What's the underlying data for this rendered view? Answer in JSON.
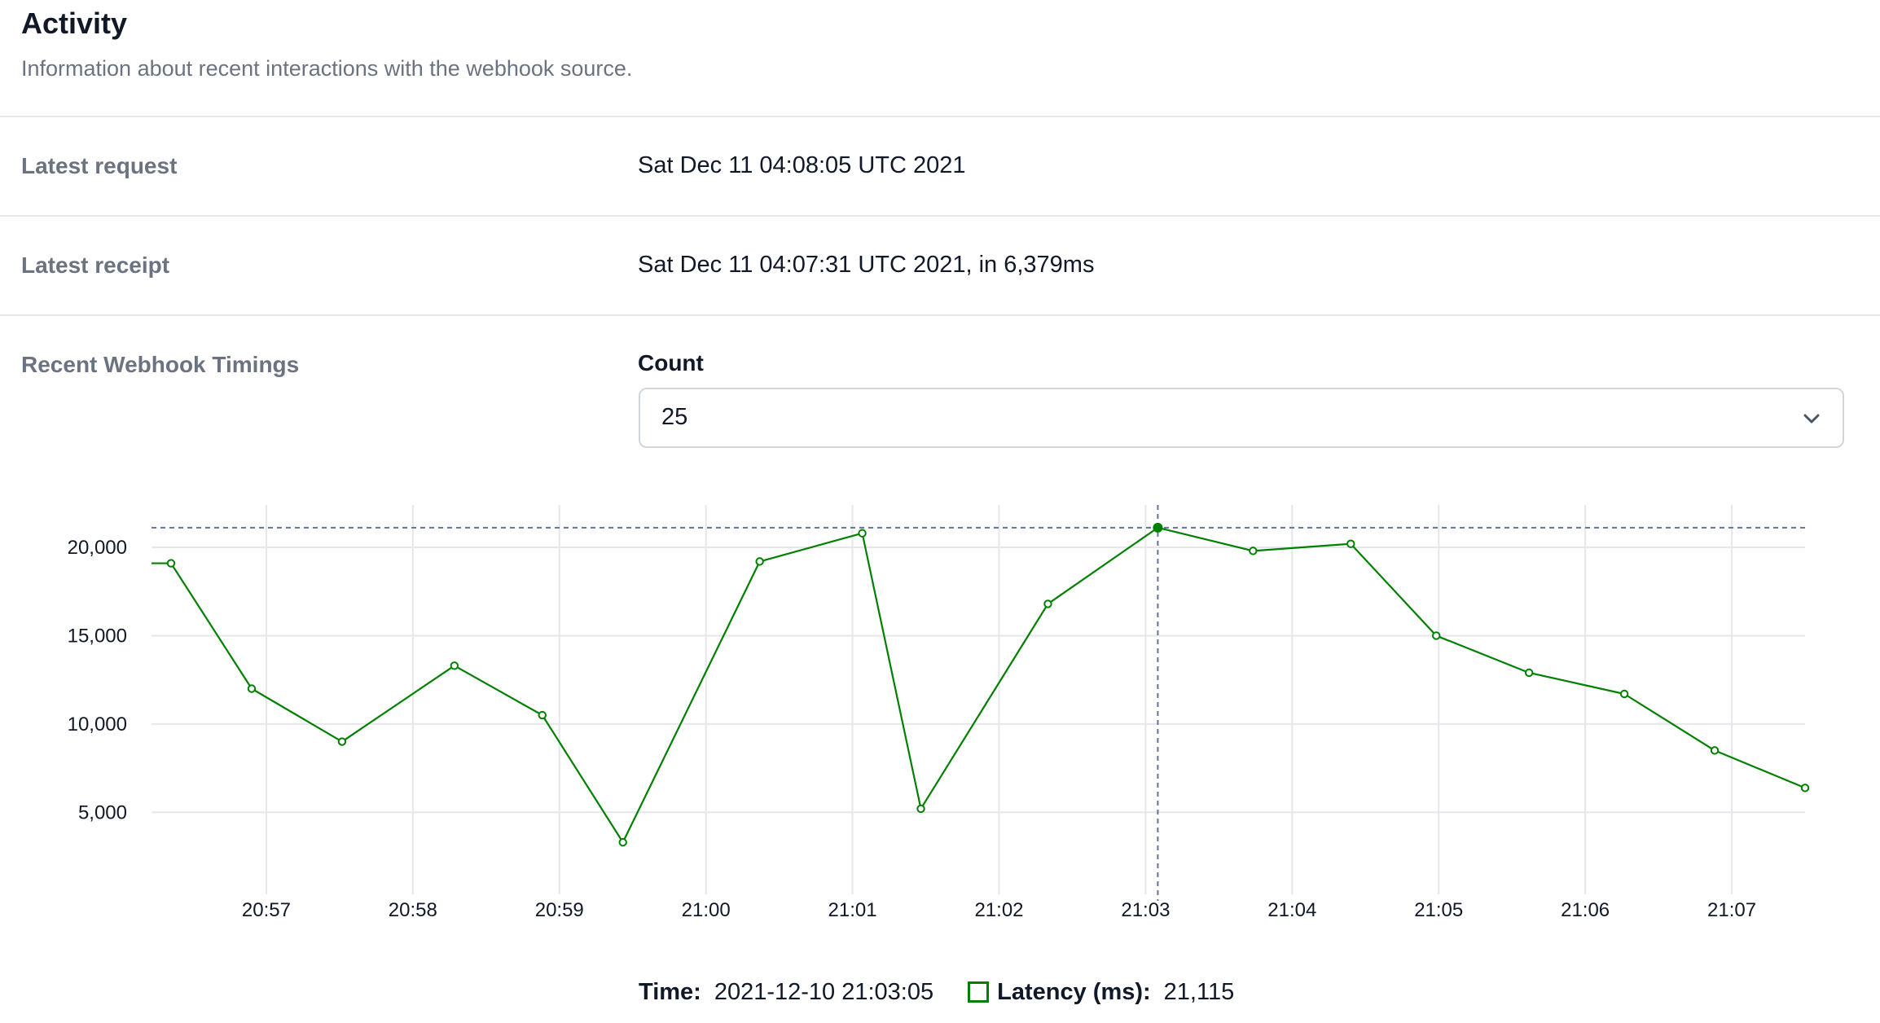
{
  "header": {
    "title": "Activity",
    "subtitle": "Information about recent interactions with the webhook source."
  },
  "rows": {
    "latest_request": {
      "label": "Latest request",
      "value": "Sat Dec 11 04:08:05 UTC 2021"
    },
    "latest_receipt": {
      "label": "Latest receipt",
      "value": "Sat Dec 11 04:07:31 UTC 2021, in 6,379ms"
    },
    "timings": {
      "label": "Recent Webhook Timings"
    }
  },
  "count": {
    "label": "Count",
    "selected": "25",
    "icon": "chevron-down-icon"
  },
  "tooltip": {
    "time_label": "Time:",
    "time_value": "2021-12-10 21:03:05",
    "latency_label": "Latency (ms):",
    "latency_value": "21,115"
  },
  "colors": {
    "series": "#008000",
    "grid": "#e5e7eb",
    "crosshair": "#64748b"
  },
  "chart_data": {
    "type": "line",
    "xlabel": "",
    "ylabel": "",
    "x_ticks": [
      "20:57",
      "20:58",
      "20:59",
      "21:00",
      "21:01",
      "21:02",
      "21:03",
      "21:04",
      "21:05",
      "21:06",
      "21:07"
    ],
    "y_ticks": [
      "5,000",
      "10,000",
      "15,000",
      "20,000"
    ],
    "y_tick_values": [
      5000,
      10000,
      15000,
      20000
    ],
    "xlim": [
      "20:56:13",
      "21:07:30"
    ],
    "ylim": [
      1000,
      22400
    ],
    "grid": true,
    "series": [
      {
        "color": "#008000",
        "points": [
          {
            "x": "20:56:13",
            "y": 19100,
            "marker": false
          },
          {
            "x": "20:56:21",
            "y": 19100
          },
          {
            "x": "20:56:54",
            "y": 12000
          },
          {
            "x": "20:57:31",
            "y": 9000
          },
          {
            "x": "20:58:17",
            "y": 13300
          },
          {
            "x": "20:58:53",
            "y": 10500
          },
          {
            "x": "20:59:26",
            "y": 3300
          },
          {
            "x": "21:00:22",
            "y": 19200
          },
          {
            "x": "21:01:04",
            "y": 20800
          },
          {
            "x": "21:01:28",
            "y": 5200
          },
          {
            "x": "21:02:20",
            "y": 16800
          },
          {
            "x": "21:03:05",
            "y": 21115,
            "active": true
          },
          {
            "x": "21:03:44",
            "y": 19800
          },
          {
            "x": "21:04:24",
            "y": 20200
          },
          {
            "x": "21:04:59",
            "y": 15000
          },
          {
            "x": "21:05:37",
            "y": 12900
          },
          {
            "x": "21:06:16",
            "y": 11700
          },
          {
            "x": "21:06:53",
            "y": 8500
          },
          {
            "x": "21:07:30",
            "y": 6379
          }
        ]
      }
    ],
    "crosshair": {
      "x": "21:03:05",
      "y": 21115
    }
  }
}
